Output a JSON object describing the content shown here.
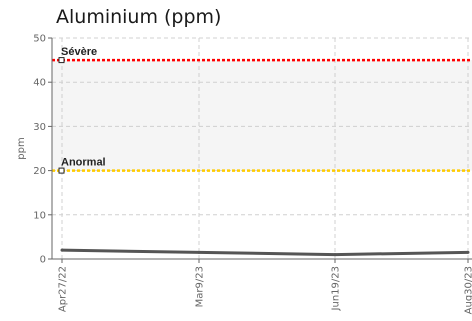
{
  "chart_data": {
    "type": "line",
    "title": "Aluminium (ppm)",
    "xlabel": "",
    "ylabel": "ppm",
    "ylim": [
      0,
      50
    ],
    "yticks": [
      0,
      10,
      20,
      30,
      40,
      50
    ],
    "x_tick_labels": [
      "Apr27/22",
      "Mar9/23",
      "Jun19/23",
      "Aug30/23"
    ],
    "grid": true,
    "legend": "none",
    "thresholds": [
      {
        "label": "Sévère",
        "value": 45,
        "color": "#ff0000"
      },
      {
        "label": "Anormal",
        "value": 20,
        "color": "#ffcc00"
      }
    ],
    "band": {
      "from": 20,
      "to": 45,
      "color": "#f5f5f5"
    },
    "series": [
      {
        "color": "#555555",
        "x": [
          "Apr27/22",
          "Mar9/23",
          "Jun19/23",
          "Aug30/23"
        ],
        "values": [
          2,
          1.5,
          1,
          1.5
        ]
      }
    ],
    "colors": {
      "axis": "#666666",
      "grid": "#d0d0d0"
    }
  }
}
